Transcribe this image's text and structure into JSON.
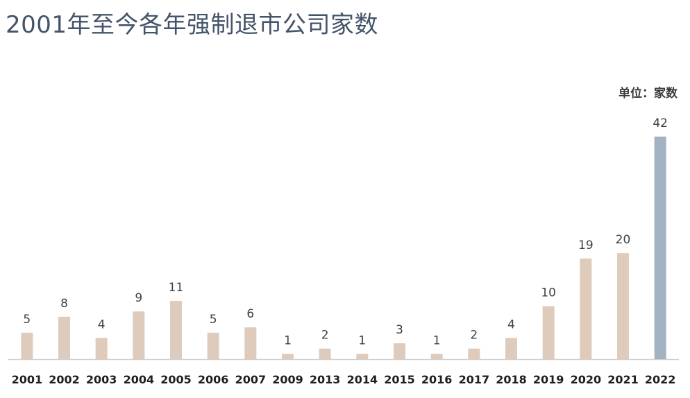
{
  "page": {
    "title": "2001年至今各年强制退市公司家数",
    "unit_label": "单位：家数"
  },
  "colors": {
    "bar_default": "#dfcbbb",
    "bar_highlight": "#a3b2c3",
    "axis_line": "#d0d0d0"
  },
  "chart_data": {
    "type": "bar",
    "title": "2001年至今各年强制退市公司家数",
    "unit": "单位：家数",
    "xlabel": "",
    "ylabel": "",
    "categories": [
      "2001",
      "2002",
      "2003",
      "2004",
      "2005",
      "2006",
      "2007",
      "2009",
      "2013",
      "2014",
      "2015",
      "2016",
      "2017",
      "2018",
      "2019",
      "2020",
      "2021",
      "2022"
    ],
    "values": [
      5,
      8,
      4,
      9,
      11,
      5,
      6,
      1,
      2,
      1,
      3,
      1,
      2,
      4,
      10,
      19,
      20,
      42
    ],
    "highlight_category": "2022",
    "data_labels": true,
    "grid": false,
    "legend": "none",
    "ylim": [
      0,
      42
    ]
  }
}
